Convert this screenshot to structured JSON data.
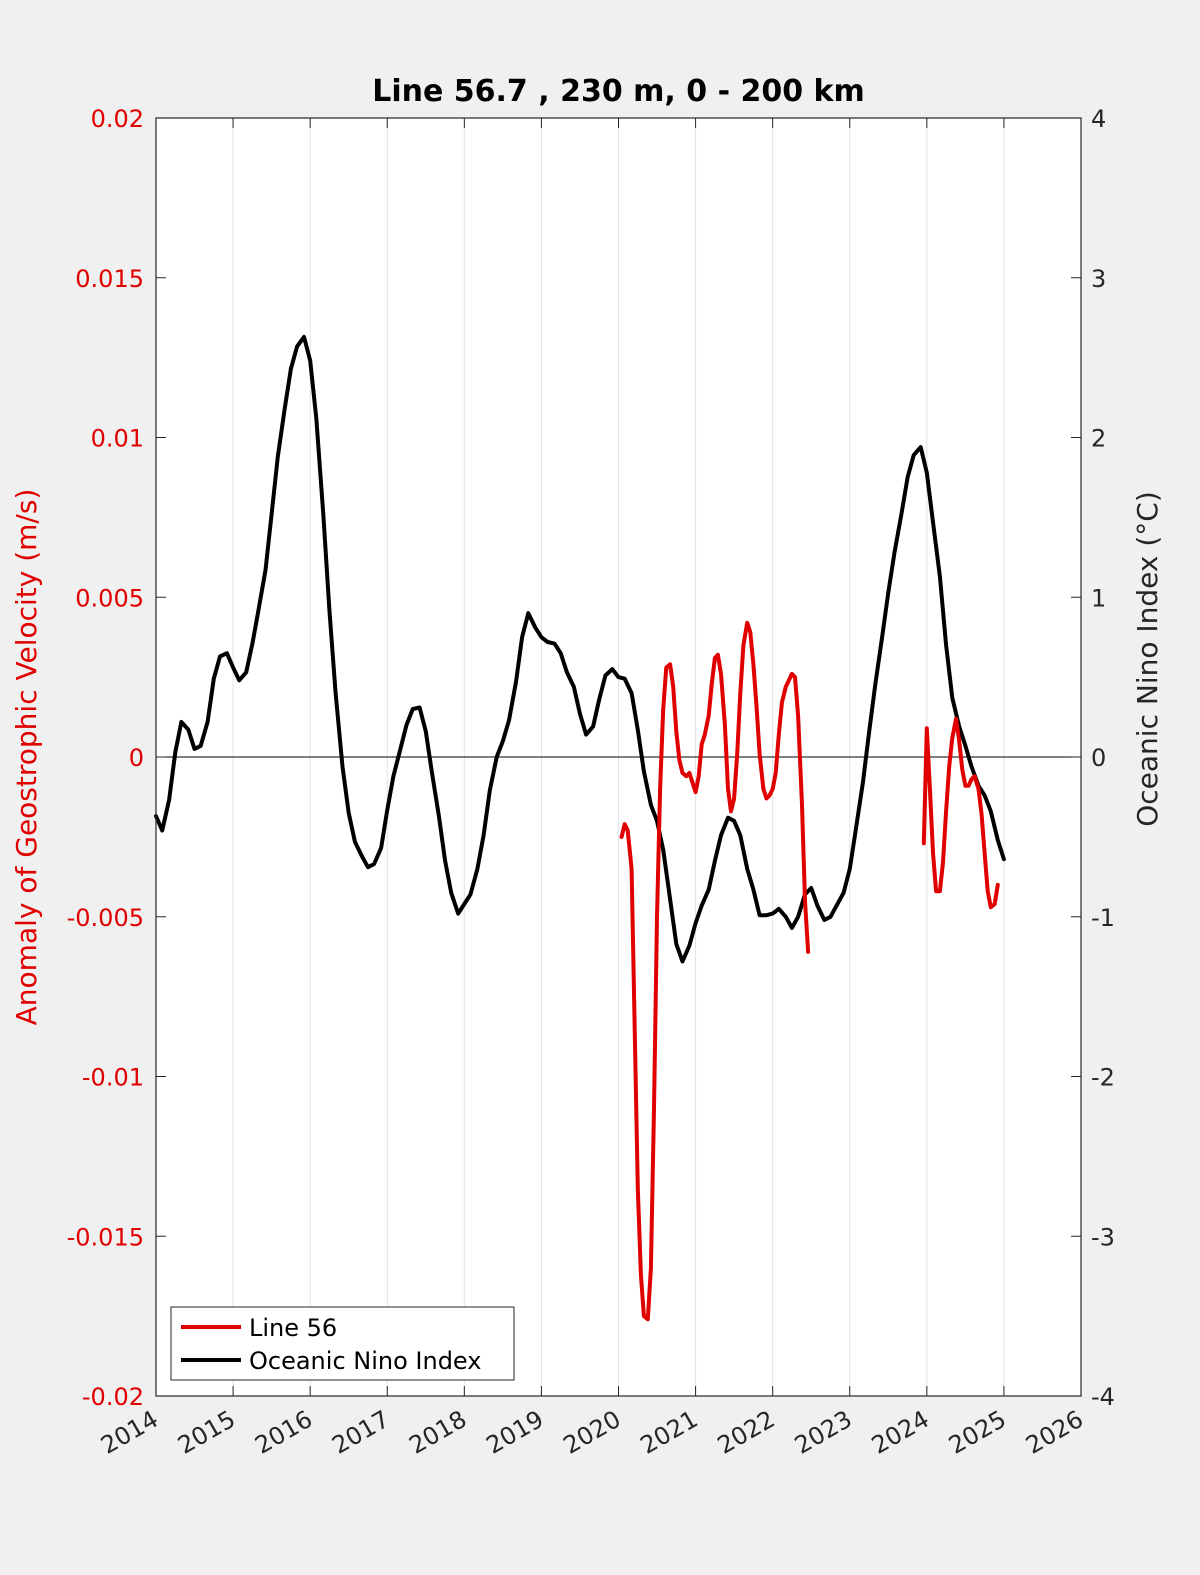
{
  "chart_data": {
    "type": "line",
    "title": "Line 56.7 , 230 m, 0 - 200 km",
    "xlabel": "",
    "ylabel_left": "Anomaly of Geostrophic Velocity (m/s)",
    "ylabel_right": "Oceanic Nino Index (°C)",
    "xlim": [
      2014,
      2026
    ],
    "ylim_left": [
      -0.02,
      0.02
    ],
    "ylim_right": [
      -4,
      4
    ],
    "x_ticks": [
      "2014",
      "2015",
      "2016",
      "2017",
      "2018",
      "2019",
      "2020",
      "2021",
      "2022",
      "2023",
      "2024",
      "2025",
      "2026"
    ],
    "y_left_ticks": [
      "-0.02",
      "-0.015",
      "-0.01",
      "-0.005",
      "0",
      "0.005",
      "0.01",
      "0.015",
      "0.02"
    ],
    "y_right_ticks": [
      "-4",
      "-3",
      "-2",
      "-1",
      "0",
      "1",
      "2",
      "3",
      "4"
    ],
    "grid": "vertical",
    "legend_position": "bottom-left",
    "colors": {
      "line56": "#e00000",
      "oni": "#000000",
      "left_axis": "#e00000",
      "right_axis": "#262626",
      "grid": "#e3e3e3"
    },
    "series": [
      {
        "name": "Line 56",
        "axis": "left",
        "segments": [
          [
            [
              2020.04,
              -0.0025
            ],
            [
              2020.08,
              -0.0021
            ],
            [
              2020.12,
              -0.0023
            ],
            [
              2020.17,
              -0.0035
            ],
            [
              2020.21,
              -0.0085
            ],
            [
              2020.25,
              -0.0135
            ],
            [
              2020.29,
              -0.0162
            ],
            [
              2020.33,
              -0.0175
            ],
            [
              2020.38,
              -0.0176
            ],
            [
              2020.42,
              -0.016
            ],
            [
              2020.46,
              -0.011
            ],
            [
              2020.5,
              -0.005
            ],
            [
              2020.54,
              -0.001
            ],
            [
              2020.58,
              0.0015
            ],
            [
              2020.62,
              0.0028
            ],
            [
              2020.67,
              0.0029
            ],
            [
              2020.71,
              0.0022
            ],
            [
              2020.75,
              0.0008
            ],
            [
              2020.79,
              -0.0001
            ],
            [
              2020.83,
              -0.0005
            ],
            [
              2020.88,
              -0.0006
            ],
            [
              2020.92,
              -0.0005
            ],
            [
              2020.96,
              -0.0008
            ],
            [
              2021.0,
              -0.0011
            ],
            [
              2021.04,
              -0.0006
            ],
            [
              2021.08,
              0.0004
            ],
            [
              2021.12,
              0.0007
            ],
            [
              2021.17,
              0.0013
            ],
            [
              2021.21,
              0.0023
            ],
            [
              2021.25,
              0.0031
            ],
            [
              2021.29,
              0.0032
            ],
            [
              2021.33,
              0.0026
            ],
            [
              2021.38,
              0.001
            ],
            [
              2021.42,
              -0.001
            ],
            [
              2021.46,
              -0.0017
            ],
            [
              2021.5,
              -0.0013
            ],
            [
              2021.54,
              0.0001
            ],
            [
              2021.58,
              0.002
            ],
            [
              2021.62,
              0.0035
            ],
            [
              2021.67,
              0.0042
            ],
            [
              2021.71,
              0.0039
            ],
            [
              2021.75,
              0.0029
            ],
            [
              2021.79,
              0.0016
            ],
            [
              2021.83,
              0.0001
            ],
            [
              2021.88,
              -0.001
            ],
            [
              2021.92,
              -0.0013
            ],
            [
              2021.96,
              -0.0012
            ],
            [
              2022.0,
              -0.001
            ],
            [
              2022.04,
              -0.0005
            ],
            [
              2022.08,
              0.0007
            ],
            [
              2022.12,
              0.0017
            ],
            [
              2022.17,
              0.0022
            ],
            [
              2022.21,
              0.0024
            ],
            [
              2022.25,
              0.0026
            ],
            [
              2022.29,
              0.0025
            ],
            [
              2022.33,
              0.0013
            ],
            [
              2022.38,
              -0.0015
            ],
            [
              2022.42,
              -0.0045
            ],
            [
              2022.46,
              -0.0061
            ]
          ],
          [
            [
              2023.96,
              -0.0027
            ],
            [
              2024.0,
              0.0009
            ],
            [
              2024.04,
              -0.001
            ],
            [
              2024.08,
              -0.003
            ],
            [
              2024.12,
              -0.0042
            ],
            [
              2024.17,
              -0.0042
            ],
            [
              2024.21,
              -0.0033
            ],
            [
              2024.25,
              -0.0017
            ],
            [
              2024.29,
              -0.0003
            ],
            [
              2024.33,
              0.0006
            ],
            [
              2024.38,
              0.0012
            ],
            [
              2024.42,
              0.0005
            ],
            [
              2024.46,
              -0.0004
            ],
            [
              2024.5,
              -0.0009
            ],
            [
              2024.54,
              -0.0009
            ],
            [
              2024.58,
              -0.0007
            ],
            [
              2024.62,
              -0.0006
            ],
            [
              2024.67,
              -0.001
            ],
            [
              2024.71,
              -0.0018
            ],
            [
              2024.75,
              -0.003
            ],
            [
              2024.79,
              -0.0042
            ],
            [
              2024.83,
              -0.0047
            ],
            [
              2024.88,
              -0.0046
            ],
            [
              2024.92,
              -0.004
            ]
          ]
        ]
      },
      {
        "name": "Oceanic Nino Index",
        "axis": "right",
        "segments": [
          [
            [
              2014.0,
              -0.37
            ],
            [
              2014.08,
              -0.46
            ],
            [
              2014.17,
              -0.27
            ],
            [
              2014.25,
              0.03
            ],
            [
              2014.33,
              0.22
            ],
            [
              2014.42,
              0.17
            ],
            [
              2014.5,
              0.05
            ],
            [
              2014.58,
              0.07
            ],
            [
              2014.67,
              0.22
            ],
            [
              2014.75,
              0.49
            ],
            [
              2014.83,
              0.63
            ],
            [
              2014.92,
              0.65
            ],
            [
              2015.0,
              0.56
            ],
            [
              2015.08,
              0.48
            ],
            [
              2015.17,
              0.53
            ],
            [
              2015.25,
              0.71
            ],
            [
              2015.33,
              0.92
            ],
            [
              2015.42,
              1.17
            ],
            [
              2015.5,
              1.52
            ],
            [
              2015.58,
              1.88
            ],
            [
              2015.67,
              2.18
            ],
            [
              2015.75,
              2.43
            ],
            [
              2015.83,
              2.57
            ],
            [
              2015.92,
              2.63
            ],
            [
              2016.0,
              2.48
            ],
            [
              2016.08,
              2.12
            ],
            [
              2016.17,
              1.52
            ],
            [
              2016.25,
              0.92
            ],
            [
              2016.33,
              0.4
            ],
            [
              2016.42,
              -0.06
            ],
            [
              2016.5,
              -0.35
            ],
            [
              2016.58,
              -0.53
            ],
            [
              2016.67,
              -0.62
            ],
            [
              2016.75,
              -0.69
            ],
            [
              2016.83,
              -0.67
            ],
            [
              2016.92,
              -0.57
            ],
            [
              2017.0,
              -0.33
            ],
            [
              2017.08,
              -0.12
            ],
            [
              2017.17,
              0.05
            ],
            [
              2017.25,
              0.2
            ],
            [
              2017.33,
              0.3
            ],
            [
              2017.42,
              0.31
            ],
            [
              2017.5,
              0.16
            ],
            [
              2017.58,
              -0.1
            ],
            [
              2017.67,
              -0.37
            ],
            [
              2017.75,
              -0.65
            ],
            [
              2017.83,
              -0.85
            ],
            [
              2017.92,
              -0.98
            ],
            [
              2018.0,
              -0.92
            ],
            [
              2018.08,
              -0.86
            ],
            [
              2018.17,
              -0.7
            ],
            [
              2018.25,
              -0.49
            ],
            [
              2018.33,
              -0.21
            ],
            [
              2018.42,
              0.0
            ],
            [
              2018.5,
              0.1
            ],
            [
              2018.58,
              0.23
            ],
            [
              2018.67,
              0.47
            ],
            [
              2018.75,
              0.75
            ],
            [
              2018.83,
              0.9
            ],
            [
              2018.92,
              0.81
            ],
            [
              2019.0,
              0.75
            ],
            [
              2019.08,
              0.72
            ],
            [
              2019.17,
              0.71
            ],
            [
              2019.25,
              0.65
            ],
            [
              2019.33,
              0.53
            ],
            [
              2019.42,
              0.44
            ],
            [
              2019.5,
              0.27
            ],
            [
              2019.58,
              0.14
            ],
            [
              2019.67,
              0.19
            ],
            [
              2019.75,
              0.36
            ],
            [
              2019.83,
              0.51
            ],
            [
              2019.92,
              0.55
            ],
            [
              2020.0,
              0.5
            ],
            [
              2020.08,
              0.49
            ],
            [
              2020.17,
              0.4
            ],
            [
              2020.25,
              0.17
            ],
            [
              2020.33,
              -0.09
            ],
            [
              2020.42,
              -0.3
            ],
            [
              2020.5,
              -0.4
            ],
            [
              2020.58,
              -0.58
            ],
            [
              2020.67,
              -0.89
            ],
            [
              2020.75,
              -1.17
            ],
            [
              2020.83,
              -1.28
            ],
            [
              2020.92,
              -1.18
            ],
            [
              2021.0,
              -1.04
            ],
            [
              2021.08,
              -0.93
            ],
            [
              2021.17,
              -0.83
            ],
            [
              2021.25,
              -0.65
            ],
            [
              2021.33,
              -0.49
            ],
            [
              2021.42,
              -0.38
            ],
            [
              2021.5,
              -0.4
            ],
            [
              2021.58,
              -0.49
            ],
            [
              2021.67,
              -0.7
            ],
            [
              2021.75,
              -0.83
            ],
            [
              2021.83,
              -0.99
            ],
            [
              2021.92,
              -0.99
            ],
            [
              2022.0,
              -0.98
            ],
            [
              2022.08,
              -0.95
            ],
            [
              2022.17,
              -1.0
            ],
            [
              2022.25,
              -1.07
            ],
            [
              2022.33,
              -1.0
            ],
            [
              2022.42,
              -0.86
            ],
            [
              2022.5,
              -0.82
            ],
            [
              2022.58,
              -0.93
            ],
            [
              2022.67,
              -1.02
            ],
            [
              2022.75,
              -1.0
            ],
            [
              2022.83,
              -0.93
            ],
            [
              2022.92,
              -0.85
            ],
            [
              2023.0,
              -0.7
            ],
            [
              2023.08,
              -0.45
            ],
            [
              2023.17,
              -0.16
            ],
            [
              2023.25,
              0.15
            ],
            [
              2023.33,
              0.45
            ],
            [
              2023.42,
              0.75
            ],
            [
              2023.5,
              1.03
            ],
            [
              2023.58,
              1.28
            ],
            [
              2023.67,
              1.52
            ],
            [
              2023.75,
              1.75
            ],
            [
              2023.83,
              1.89
            ],
            [
              2023.92,
              1.94
            ],
            [
              2024.0,
              1.78
            ],
            [
              2024.08,
              1.47
            ],
            [
              2024.17,
              1.13
            ],
            [
              2024.25,
              0.7
            ],
            [
              2024.33,
              0.37
            ],
            [
              2024.42,
              0.19
            ],
            [
              2024.5,
              0.07
            ],
            [
              2024.58,
              -0.06
            ],
            [
              2024.67,
              -0.18
            ],
            [
              2024.75,
              -0.24
            ],
            [
              2024.83,
              -0.34
            ],
            [
              2024.92,
              -0.52
            ],
            [
              2025.0,
              -0.64
            ]
          ]
        ]
      }
    ]
  }
}
